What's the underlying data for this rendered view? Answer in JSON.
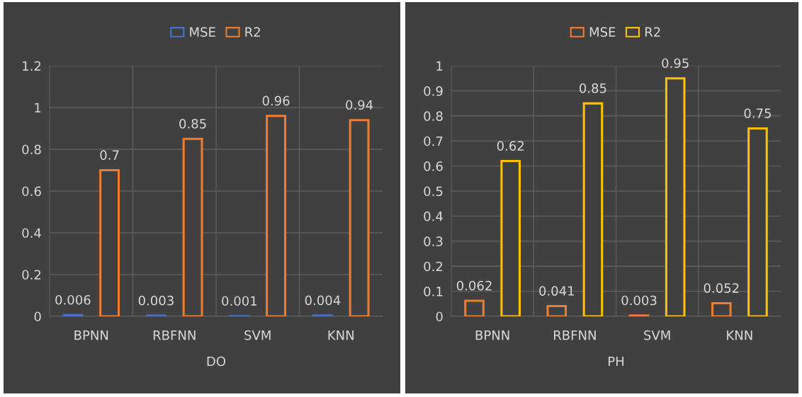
{
  "chart_data": [
    {
      "type": "bar",
      "xlabel": "DO",
      "categories": [
        "BPNN",
        "RBFNN",
        "SVM",
        "KNN"
      ],
      "series": [
        {
          "name": "MSE",
          "color": "#4472c4",
          "values": [
            0.006,
            0.003,
            0.001,
            0.004
          ]
        },
        {
          "name": "R2",
          "color": "#ed7d31",
          "values": [
            0.7,
            0.85,
            0.96,
            0.94
          ]
        }
      ],
      "ylim": [
        0,
        1.2
      ],
      "yticks": [
        0,
        0.2,
        0.4,
        0.6,
        0.8,
        1,
        1.2
      ],
      "grid": true,
      "legend": "top",
      "data_labels": true
    },
    {
      "type": "bar",
      "xlabel": "PH",
      "categories": [
        "BPNN",
        "RBFNN",
        "SVM",
        "KNN"
      ],
      "series": [
        {
          "name": "MSE",
          "color": "#ed7d31",
          "values": [
            0.062,
            0.041,
            0.003,
            0.052
          ]
        },
        {
          "name": "R2",
          "color": "#ffc000",
          "values": [
            0.62,
            0.85,
            0.95,
            0.75
          ]
        }
      ],
      "ylim": [
        0,
        1
      ],
      "yticks": [
        0,
        0.1,
        0.2,
        0.3,
        0.4,
        0.5,
        0.6,
        0.7,
        0.8,
        0.9,
        1
      ],
      "grid": true,
      "legend": "top",
      "data_labels": true
    }
  ]
}
